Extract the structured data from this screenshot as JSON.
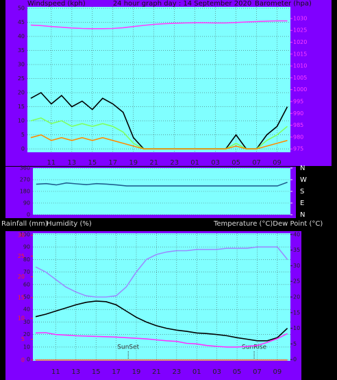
{
  "chart_data": [
    {
      "type": "line",
      "title": "24 hour graph day : 14 September 2020",
      "y_label": "Windspeed (kph)",
      "y2_label": "Barometer (hpa)",
      "x": [
        9,
        10,
        11,
        12,
        13,
        14,
        15,
        16,
        17,
        18,
        19,
        20,
        21,
        22,
        23,
        24,
        25,
        26,
        27,
        28,
        29,
        30,
        31,
        32,
        33,
        34
      ],
      "xlim": [
        8.67,
        34.3
      ],
      "xticks": [
        11,
        13,
        15,
        17,
        19,
        21,
        23,
        {
          "value": 25,
          "label": "01"
        },
        {
          "value": 27,
          "label": "03"
        },
        {
          "value": 29,
          "label": "05"
        },
        {
          "value": 31,
          "label": "07"
        },
        {
          "value": 33,
          "label": "09"
        }
      ],
      "ylim": [
        -1.2,
        50.5
      ],
      "yticks": [
        0,
        5,
        10,
        15,
        20,
        25,
        30,
        35,
        40,
        45,
        50
      ],
      "y2lim": [
        973.6,
        1034.9
      ],
      "y2ticks": [
        975,
        980,
        985,
        990,
        995,
        1000,
        1005,
        1010,
        1015,
        1020,
        1025,
        1030
      ],
      "grid": true,
      "series": [
        {
          "color": "#000000",
          "values": [
            18,
            20,
            16,
            19,
            15,
            17,
            14,
            18,
            16,
            13,
            4,
            0,
            0,
            0,
            0,
            0,
            0,
            0,
            0,
            0,
            5,
            0,
            0,
            5,
            8,
            15
          ]
        },
        {
          "color": "#7fff5f",
          "values": [
            10,
            11,
            9,
            10,
            8,
            9,
            8,
            9,
            8,
            6,
            2,
            0,
            0,
            0,
            0,
            0,
            0,
            0,
            0,
            0,
            2,
            0,
            0,
            3,
            5,
            8
          ]
        },
        {
          "color": "#ff8c00",
          "values": [
            4,
            5,
            3,
            4,
            3,
            4,
            3,
            4,
            3,
            2,
            1,
            0,
            0,
            0,
            0,
            0,
            0,
            0,
            0,
            0,
            1,
            0,
            0,
            1,
            2,
            3
          ]
        },
        {
          "color": "#ff40ff",
          "axis": "y2",
          "values": [
            1027.2,
            1027,
            1026.6,
            1026.3,
            1026,
            1025.8,
            1025.7,
            1025.7,
            1025.8,
            1026.1,
            1026.6,
            1027.1,
            1027.5,
            1027.8,
            1028,
            1028.1,
            1028.2,
            1028.2,
            1028.1,
            1028.1,
            1028.3,
            1028.5,
            1028.7,
            1028.9,
            1029,
            1029
          ]
        }
      ]
    },
    {
      "type": "line",
      "x": [
        9,
        10,
        11,
        12,
        13,
        14,
        15,
        16,
        17,
        18,
        19,
        20,
        21,
        22,
        23,
        24,
        25,
        26,
        27,
        28,
        29,
        30,
        31,
        32,
        33,
        34
      ],
      "xlim": [
        8.67,
        34.3
      ],
      "ylim": [
        0,
        360
      ],
      "yticks": [
        0,
        90,
        180,
        270,
        360
      ],
      "y2lim": [
        0,
        360
      ],
      "y2ticks": [
        {
          "value": 360,
          "label": "N"
        },
        {
          "value": 270,
          "label": "W"
        },
        {
          "value": 180,
          "label": "S"
        },
        {
          "value": 90,
          "label": "E"
        },
        {
          "value": 0,
          "label": "N"
        }
      ],
      "grid": true,
      "series": [
        {
          "color": "#1f5f8f",
          "values": [
            235,
            240,
            230,
            245,
            238,
            232,
            240,
            236,
            230,
            222,
            222,
            222,
            222,
            222,
            222,
            222,
            222,
            222,
            222,
            222,
            222,
            222,
            222,
            222,
            222,
            250
          ]
        }
      ]
    },
    {
      "type": "line",
      "y3_label": "Rainfall (mm)",
      "y_label": "Humidity (%)",
      "y2_label": "Temperature (°C)Dew Point (°C)",
      "x": [
        9,
        10,
        11,
        12,
        13,
        14,
        15,
        16,
        17,
        18,
        19,
        20,
        21,
        22,
        23,
        24,
        25,
        26,
        27,
        28,
        29,
        30,
        31,
        32,
        33,
        34
      ],
      "xlim": [
        8.73,
        34.3
      ],
      "xticks": [
        11,
        13,
        15,
        17,
        19,
        21,
        23,
        {
          "value": 25,
          "label": "01"
        },
        {
          "value": 27,
          "label": "03"
        },
        {
          "value": 29,
          "label": "05"
        },
        {
          "value": 31,
          "label": "07"
        },
        {
          "value": 33,
          "label": "09"
        }
      ],
      "ylim": [
        -1,
        101
      ],
      "yticks": [
        0,
        10,
        20,
        30,
        40,
        50,
        60,
        70,
        80,
        90,
        100
      ],
      "y2lim": [
        -0.4,
        40.4
      ],
      "y2ticks": [
        0,
        5,
        10,
        15,
        20,
        25,
        30,
        35,
        40
      ],
      "y3lim": [
        -0.2,
        30.5
      ],
      "y3ticks": [
        0,
        5,
        10,
        15,
        20,
        25,
        30
      ],
      "grid": true,
      "annotations": [
        {
          "text": "SunSet",
          "x": 18.2
        },
        {
          "text": "SunRise",
          "x": 30.7
        }
      ],
      "series": [
        {
          "color": "#9a8cff",
          "values": [
            74,
            70,
            64,
            58,
            54,
            51,
            50,
            50,
            51,
            58,
            70,
            80,
            84,
            86,
            87,
            87,
            88,
            88,
            88,
            89,
            89,
            89,
            90,
            90,
            90,
            80
          ]
        },
        {
          "color": "#000000",
          "axis": "y2",
          "values": [
            13.7,
            14.5,
            15.5,
            16.5,
            17.5,
            18.3,
            18.7,
            18.5,
            17.5,
            15.5,
            13.5,
            12,
            10.8,
            10,
            9.4,
            9,
            8.5,
            8.3,
            8,
            7.6,
            7,
            6.5,
            6,
            6,
            7,
            10
          ]
        },
        {
          "color": "#ff30ff",
          "axis": "y2",
          "values": [
            8.5,
            8.6,
            8,
            7.8,
            7.6,
            7.5,
            7.4,
            7.3,
            7.2,
            7,
            6.8,
            6.6,
            6.3,
            6,
            5.8,
            5.2,
            5,
            4.5,
            4.2,
            4,
            4,
            4.2,
            4.5,
            5.5,
            6.7,
            8.3
          ]
        },
        {
          "color": "#ff6a3a",
          "axis": "y3",
          "values": [
            0,
            0,
            0,
            0,
            0,
            0,
            0,
            0,
            0,
            0,
            0,
            0,
            0,
            0,
            0,
            0,
            0,
            0,
            0,
            0,
            0,
            0,
            0,
            0,
            0,
            0
          ]
        }
      ]
    }
  ]
}
